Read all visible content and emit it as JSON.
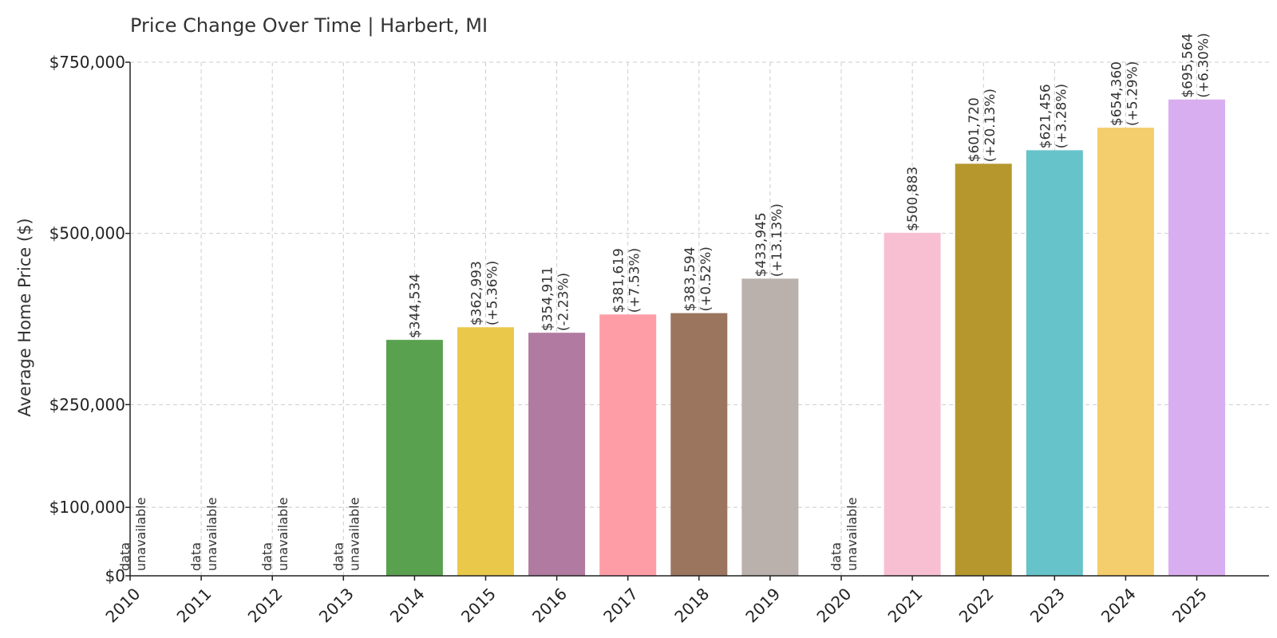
{
  "chart_data": {
    "type": "bar",
    "title": "Price Change Over Time | Harbert, MI",
    "xlabel": "",
    "ylabel": "Average Home Price ($)",
    "ylim": [
      0,
      750000
    ],
    "yticks": [
      0,
      100000,
      250000,
      500000,
      750000
    ],
    "ytick_labels": [
      "$0",
      "$100,000",
      "$250,000",
      "$500,000",
      "$750,000"
    ],
    "grid": true,
    "unavailable_text": [
      "data",
      "unavailable"
    ],
    "categories": [
      "2010",
      "2011",
      "2012",
      "2013",
      "2014",
      "2015",
      "2016",
      "2017",
      "2018",
      "2019",
      "2020",
      "2021",
      "2022",
      "2023",
      "2024",
      "2025"
    ],
    "values": [
      null,
      null,
      null,
      null,
      344534,
      362993,
      354911,
      381619,
      383594,
      433945,
      null,
      500883,
      601720,
      621456,
      654360,
      695564
    ],
    "value_labels": [
      "",
      "",
      "",
      "",
      "$344,534",
      "$362,993",
      "$354,911",
      "$381,619",
      "$383,594",
      "$433,945",
      "",
      "$500,883",
      "$601,720",
      "$621,456",
      "$654,360",
      "$695,564"
    ],
    "change_labels": [
      "",
      "",
      "",
      "",
      "",
      "(+5.36%)",
      "(-2.23%)",
      "(+7.53%)",
      "(+0.52%)",
      "(+13.13%)",
      "",
      "",
      "(+20.13%)",
      "(+3.28%)",
      "(+5.29%)",
      "(+6.30%)"
    ],
    "colors": [
      "",
      "",
      "",
      "",
      "#59a14f",
      "#e9c84a",
      "#b07aa1",
      "#ff9da7",
      "#9c755f",
      "#bab0ac",
      "",
      "#f8bfd3",
      "#b5972e",
      "#67c3ca",
      "#f4cd6c",
      "#d9aef0"
    ]
  }
}
